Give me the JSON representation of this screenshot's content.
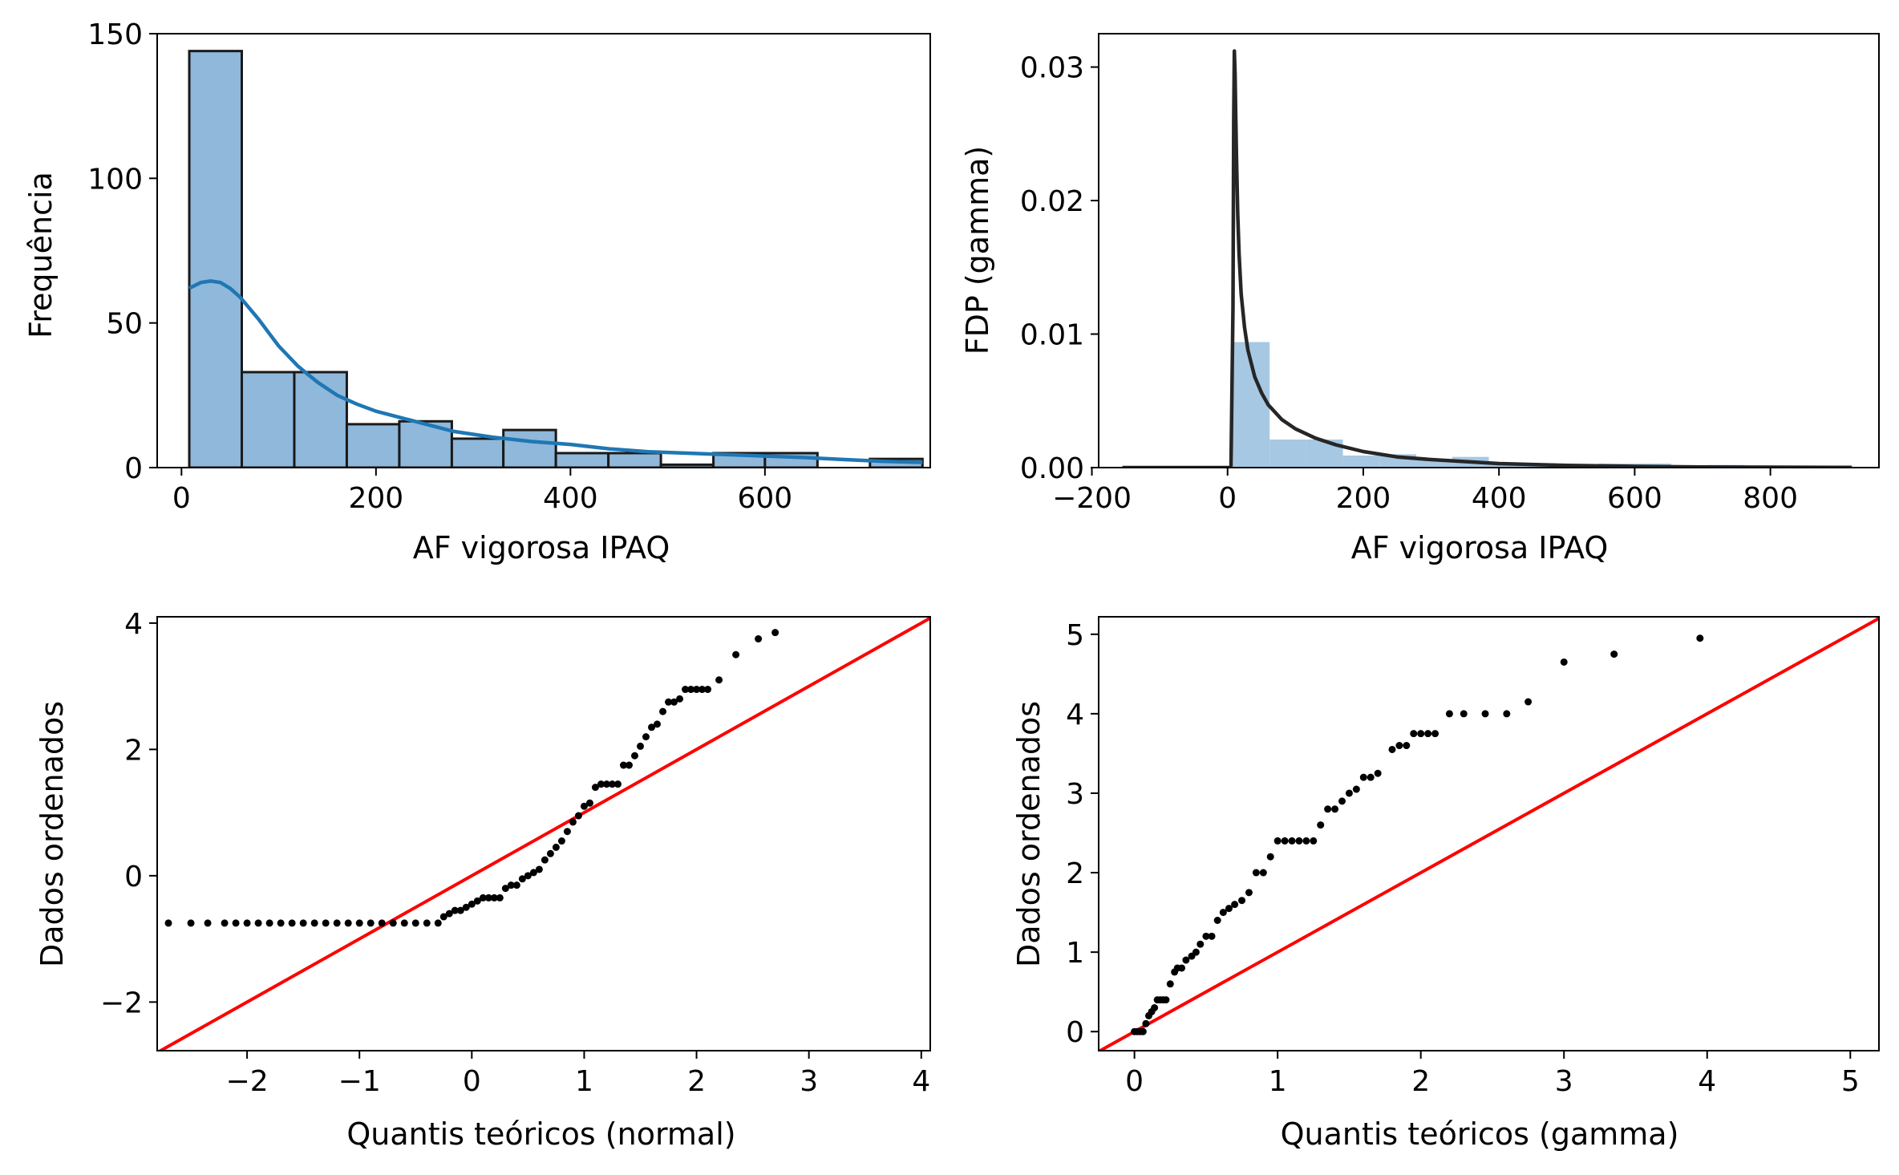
{
  "chart_data": [
    {
      "type": "bar",
      "subtype": "histogram-with-kde",
      "xlabel": "AF vigorosa IPAQ",
      "ylabel": "Frequência",
      "xlim": [
        -25,
        770
      ],
      "ylim": [
        0,
        150
      ],
      "xticks": [
        0,
        200,
        400,
        600
      ],
      "yticks": [
        0,
        50,
        100,
        150
      ],
      "xtick_labels": [
        "0",
        "200",
        "400",
        "600"
      ],
      "ytick_labels": [
        "0",
        "50",
        "100",
        "150"
      ],
      "bar_color": "#8fb8db",
      "bar_edge_color": "#1a1a1a",
      "kde_color": "#1f77b4",
      "bins": [
        {
          "x0": 8,
          "x1": 62,
          "count": 144
        },
        {
          "x0": 62,
          "x1": 116,
          "count": 33
        },
        {
          "x0": 116,
          "x1": 170,
          "count": 33
        },
        {
          "x0": 170,
          "x1": 224,
          "count": 15
        },
        {
          "x0": 224,
          "x1": 278,
          "count": 16
        },
        {
          "x0": 278,
          "x1": 331,
          "count": 10
        },
        {
          "x0": 331,
          "x1": 385,
          "count": 13
        },
        {
          "x0": 385,
          "x1": 439,
          "count": 5
        },
        {
          "x0": 439,
          "x1": 493,
          "count": 5
        },
        {
          "x0": 493,
          "x1": 547,
          "count": 1
        },
        {
          "x0": 547,
          "x1": 600,
          "count": 5
        },
        {
          "x0": 600,
          "x1": 654,
          "count": 5
        },
        {
          "x0": 654,
          "x1": 708,
          "count": 0
        },
        {
          "x0": 708,
          "x1": 762,
          "count": 3
        }
      ],
      "kde": {
        "x": [
          8,
          20,
          30,
          40,
          50,
          60,
          70,
          80,
          90,
          100,
          120,
          140,
          160,
          180,
          200,
          240,
          280,
          320,
          360,
          400,
          440,
          480,
          520,
          560,
          600,
          640,
          680,
          720,
          762
        ],
        "y": [
          62,
          64,
          64.5,
          64,
          62,
          59,
          55,
          51,
          46.5,
          42,
          35,
          29.5,
          25,
          22,
          19.5,
          16,
          12.5,
          10.5,
          9,
          8,
          6.5,
          5.5,
          5,
          4.5,
          4,
          3.5,
          2.8,
          2.2,
          1.8
        ]
      }
    },
    {
      "type": "bar",
      "subtype": "density-histogram-with-gamma-pdf",
      "xlabel": "AF vigorosa IPAQ",
      "ylabel": "FDP (gamma)",
      "xlim": [
        -190,
        960
      ],
      "ylim": [
        0,
        0.0325
      ],
      "xticks": [
        -200,
        0,
        200,
        400,
        600,
        800
      ],
      "yticks": [
        0,
        0.01,
        0.02,
        0.03
      ],
      "xtick_labels": [
        "−200",
        "0",
        "200",
        "400",
        "600",
        "800"
      ],
      "ytick_labels": [
        "0.00",
        "0.01",
        "0.02",
        "0.03"
      ],
      "bar_color": "#a6c8e3",
      "line_color": "#262626",
      "bins": [
        {
          "x0": 8,
          "x1": 62,
          "density": 0.0094
        },
        {
          "x0": 62,
          "x1": 116,
          "density": 0.0021
        },
        {
          "x0": 116,
          "x1": 170,
          "density": 0.0021
        },
        {
          "x0": 170,
          "x1": 224,
          "density": 0.0009
        },
        {
          "x0": 224,
          "x1": 278,
          "density": 0.001
        },
        {
          "x0": 278,
          "x1": 331,
          "density": 0.0006
        },
        {
          "x0": 331,
          "x1": 385,
          "density": 0.0008
        },
        {
          "x0": 385,
          "x1": 439,
          "density": 0.0003
        },
        {
          "x0": 439,
          "x1": 493,
          "density": 0.0003
        },
        {
          "x0": 493,
          "x1": 547,
          "density": 0.0001
        },
        {
          "x0": 547,
          "x1": 600,
          "density": 0.0003
        },
        {
          "x0": 600,
          "x1": 654,
          "density": 0.0003
        },
        {
          "x0": 654,
          "x1": 708,
          "density": 0
        },
        {
          "x0": 708,
          "x1": 762,
          "density": 0.0002
        }
      ],
      "pdf": {
        "x": [
          -155,
          5,
          8,
          9,
          10,
          11,
          12,
          13,
          15,
          17,
          20,
          25,
          30,
          40,
          50,
          60,
          80,
          100,
          130,
          160,
          200,
          250,
          300,
          400,
          500,
          600,
          700,
          800,
          920
        ],
        "y": [
          0,
          0,
          0.012,
          0.026,
          0.0312,
          0.0295,
          0.0265,
          0.0235,
          0.019,
          0.016,
          0.013,
          0.0105,
          0.0088,
          0.0068,
          0.0056,
          0.0047,
          0.0036,
          0.0029,
          0.0022,
          0.0017,
          0.0012,
          0.0008,
          0.0006,
          0.0003,
          0.00016,
          9e-05,
          5e-05,
          3e-05,
          1e-05
        ]
      }
    },
    {
      "type": "scatter",
      "subtype": "qq-plot",
      "xlabel": "Quantis teóricos (normal)",
      "ylabel": "Dados ordenados",
      "xlim": [
        -2.8,
        4.08
      ],
      "ylim": [
        -2.77,
        4.1
      ],
      "xticks": [
        -2,
        -1,
        0,
        1,
        2,
        3,
        4
      ],
      "yticks": [
        -2,
        0,
        2,
        4
      ],
      "xtick_labels": [
        "−2",
        "−1",
        "0",
        "1",
        "2",
        "3",
        "4"
      ],
      "ytick_labels": [
        "−2",
        "0",
        "2",
        "4"
      ],
      "point_color": "#000000",
      "reference_line": {
        "color": "#ff0000",
        "slope": 1,
        "intercept": 0
      },
      "points": {
        "x": [
          -2.7,
          -2.5,
          -2.35,
          -2.2,
          -2.1,
          -2.0,
          -1.9,
          -1.8,
          -1.7,
          -1.6,
          -1.5,
          -1.4,
          -1.3,
          -1.2,
          -1.1,
          -1.0,
          -0.9,
          -0.8,
          -0.7,
          -0.6,
          -0.5,
          -0.4,
          -0.3,
          -0.25,
          -0.2,
          -0.15,
          -0.1,
          -0.05,
          0.0,
          0.05,
          0.1,
          0.15,
          0.2,
          0.25,
          0.3,
          0.35,
          0.4,
          0.45,
          0.5,
          0.55,
          0.6,
          0.65,
          0.7,
          0.75,
          0.8,
          0.85,
          0.9,
          0.95,
          1.0,
          1.05,
          1.1,
          1.15,
          1.2,
          1.25,
          1.3,
          1.35,
          1.4,
          1.45,
          1.5,
          1.55,
          1.6,
          1.65,
          1.7,
          1.75,
          1.8,
          1.85,
          1.9,
          1.95,
          2.0,
          2.05,
          2.1,
          2.2,
          2.35,
          2.55,
          2.7
        ],
        "y": [
          -0.75,
          -0.75,
          -0.75,
          -0.75,
          -0.75,
          -0.75,
          -0.75,
          -0.75,
          -0.75,
          -0.75,
          -0.75,
          -0.75,
          -0.75,
          -0.75,
          -0.75,
          -0.75,
          -0.75,
          -0.75,
          -0.75,
          -0.75,
          -0.75,
          -0.75,
          -0.75,
          -0.65,
          -0.6,
          -0.55,
          -0.55,
          -0.5,
          -0.45,
          -0.4,
          -0.35,
          -0.35,
          -0.35,
          -0.35,
          -0.2,
          -0.15,
          -0.15,
          -0.05,
          0.0,
          0.05,
          0.1,
          0.25,
          0.35,
          0.45,
          0.55,
          0.7,
          0.85,
          0.95,
          1.1,
          1.15,
          1.4,
          1.45,
          1.45,
          1.45,
          1.45,
          1.75,
          1.75,
          1.9,
          2.05,
          2.2,
          2.35,
          2.4,
          2.6,
          2.75,
          2.75,
          2.8,
          2.95,
          2.95,
          2.95,
          2.95,
          2.95,
          3.1,
          3.5,
          3.75,
          3.85
        ]
      }
    },
    {
      "type": "scatter",
      "subtype": "qq-plot",
      "xlabel": "Quantis teóricos (gamma)",
      "ylabel": "Dados ordenados",
      "xlim": [
        -0.25,
        5.2
      ],
      "ylim": [
        -0.24,
        5.22
      ],
      "xticks": [
        0,
        1,
        2,
        3,
        4,
        5
      ],
      "yticks": [
        0,
        1,
        2,
        3,
        4,
        5
      ],
      "xtick_labels": [
        "0",
        "1",
        "2",
        "3",
        "4",
        "5"
      ],
      "ytick_labels": [
        "0",
        "1",
        "2",
        "3",
        "4",
        "5"
      ],
      "point_color": "#000000",
      "reference_line": {
        "color": "#ff0000",
        "slope": 1,
        "intercept": 0
      },
      "points": {
        "x": [
          0.0,
          0.02,
          0.04,
          0.06,
          0.08,
          0.1,
          0.12,
          0.14,
          0.16,
          0.18,
          0.2,
          0.22,
          0.25,
          0.28,
          0.3,
          0.33,
          0.36,
          0.4,
          0.43,
          0.46,
          0.5,
          0.54,
          0.58,
          0.62,
          0.66,
          0.7,
          0.75,
          0.8,
          0.85,
          0.9,
          0.95,
          1.0,
          1.05,
          1.1,
          1.15,
          1.2,
          1.25,
          1.3,
          1.35,
          1.4,
          1.45,
          1.5,
          1.55,
          1.6,
          1.65,
          1.7,
          1.8,
          1.85,
          1.9,
          1.95,
          2.0,
          2.05,
          2.1,
          2.2,
          2.3,
          2.45,
          2.6,
          2.75,
          3.0,
          3.35,
          3.95
        ],
        "y": [
          0.0,
          0.0,
          0.0,
          0.0,
          0.1,
          0.2,
          0.25,
          0.3,
          0.4,
          0.4,
          0.4,
          0.4,
          0.6,
          0.75,
          0.8,
          0.8,
          0.9,
          0.95,
          1.0,
          1.1,
          1.2,
          1.2,
          1.4,
          1.5,
          1.55,
          1.6,
          1.65,
          1.75,
          2.0,
          2.0,
          2.2,
          2.4,
          2.4,
          2.4,
          2.4,
          2.4,
          2.4,
          2.6,
          2.8,
          2.8,
          2.9,
          3.0,
          3.05,
          3.2,
          3.2,
          3.25,
          3.55,
          3.6,
          3.6,
          3.75,
          3.75,
          3.75,
          3.75,
          4.0,
          4.0,
          4.0,
          4.0,
          4.15,
          4.65,
          4.75,
          4.95
        ]
      }
    }
  ]
}
